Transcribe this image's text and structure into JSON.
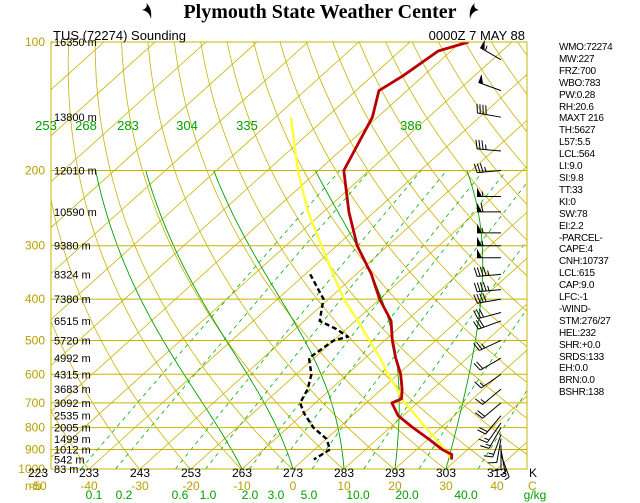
{
  "header": {
    "title": "Plymouth State Weather Center",
    "station": "TUS (72274) Sounding",
    "time": "0000Z  7 MAY 88"
  },
  "chart_data": {
    "type": "line",
    "chart_kind": "skew-T log-P sounding diagram",
    "pressure_axis": {
      "scale": "log",
      "range": [
        1000,
        100
      ],
      "ticks": [
        "100",
        "200",
        "300",
        "400",
        "500",
        "600",
        "700",
        "800",
        "900",
        "1000"
      ]
    },
    "height_labels": [
      {
        "p": 100,
        "label": "16350 m"
      },
      {
        "p": 150,
        "label": "13800 m"
      },
      {
        "p": 200,
        "label": "12010 m"
      },
      {
        "p": 250,
        "label": "10590 m"
      },
      {
        "p": 300,
        "label": "9380 m"
      },
      {
        "p": 350,
        "label": "8324 m"
      },
      {
        "p": 400,
        "label": "7380 m"
      },
      {
        "p": 450,
        "label": "6515 m"
      },
      {
        "p": 500,
        "label": "5720 m"
      },
      {
        "p": 550,
        "label": "4992 m"
      },
      {
        "p": 600,
        "label": "4315 m"
      },
      {
        "p": 650,
        "label": "3683 m"
      },
      {
        "p": 700,
        "label": "3092 m"
      },
      {
        "p": 750,
        "label": "2535 m"
      },
      {
        "p": 800,
        "label": "2005 m"
      },
      {
        "p": 850,
        "label": "1499 m"
      },
      {
        "p": 900,
        "label": "1012 m"
      },
      {
        "p": 950,
        "label": "542 m"
      },
      {
        "p": 1000,
        "label": "83 m"
      }
    ],
    "x_axis_celsius": [
      {
        "t": -50,
        "label": "-50"
      },
      {
        "t": -40,
        "label": "-40"
      },
      {
        "t": -30,
        "label": "-30"
      },
      {
        "t": -20,
        "label": "-20"
      },
      {
        "t": -10,
        "label": "-10"
      },
      {
        "t": 0,
        "label": "0"
      },
      {
        "t": 10,
        "label": "10"
      },
      {
        "t": 20,
        "label": "20"
      },
      {
        "t": 30,
        "label": "30"
      },
      {
        "t": 40,
        "label": "40"
      }
    ],
    "x_axis_kelvin": [
      {
        "t": -50,
        "label": "223"
      },
      {
        "t": -40,
        "label": "233"
      },
      {
        "t": -30,
        "label": "243"
      },
      {
        "t": -20,
        "label": "253"
      },
      {
        "t": -10,
        "label": "263"
      },
      {
        "t": 0,
        "label": "273"
      },
      {
        "t": 10,
        "label": "283"
      },
      {
        "t": 20,
        "label": "293"
      },
      {
        "t": 30,
        "label": "303"
      },
      {
        "t": 40,
        "label": "313"
      }
    ],
    "x_units": {
      "millibar": "mb",
      "kelvin": "K",
      "celsius": "C"
    },
    "mixing_ratio": {
      "units": "g/kg",
      "values": [
        0.1,
        0.2,
        0.6,
        1.0,
        2.0,
        3.0,
        5.0,
        10.0,
        20.0,
        40.0
      ],
      "labels": [
        "0.1",
        "0.2",
        "0.6",
        "1.0",
        "2.0",
        "3.0",
        "5.0",
        "10.0",
        "20.0",
        "40.0"
      ]
    },
    "dry_adiabat_labels": [
      "253",
      "268",
      "283",
      "304",
      "335",
      "386"
    ],
    "series": [
      {
        "role": "temperature",
        "color": "#b80000",
        "points": [
          [
            100,
            -58.5
          ],
          [
            105,
            -62.5
          ],
          [
            120,
            -64
          ],
          [
            130,
            -65.5
          ],
          [
            150,
            -61
          ],
          [
            200,
            -55
          ],
          [
            250,
            -45
          ],
          [
            300,
            -36
          ],
          [
            350,
            -27
          ],
          [
            400,
            -20
          ],
          [
            450,
            -13
          ],
          [
            500,
            -8.5
          ],
          [
            550,
            -4
          ],
          [
            600,
            0.5
          ],
          [
            650,
            4
          ],
          [
            685,
            6
          ],
          [
            700,
            5
          ],
          [
            750,
            9
          ],
          [
            800,
            14.5
          ],
          [
            850,
            20
          ],
          [
            900,
            25
          ],
          [
            925,
            28
          ],
          [
            950,
            29
          ]
        ]
      },
      {
        "role": "dewpoint",
        "color": "#000000",
        "points": [
          [
            350,
            -39
          ],
          [
            400,
            -31
          ],
          [
            450,
            -27
          ],
          [
            470,
            -22
          ],
          [
            490,
            -18
          ],
          [
            500,
            -20
          ],
          [
            550,
            -21
          ],
          [
            600,
            -17
          ],
          [
            650,
            -14.5
          ],
          [
            700,
            -13
          ],
          [
            740,
            -10
          ],
          [
            800,
            -5
          ],
          [
            850,
            0
          ],
          [
            900,
            3
          ],
          [
            950,
            2
          ]
        ]
      },
      {
        "role": "parcel",
        "color": "#ffff33",
        "points": [
          [
            950,
            29
          ],
          [
            900,
            25.5
          ],
          [
            850,
            21.5
          ],
          [
            800,
            17
          ],
          [
            750,
            12.5
          ],
          [
            700,
            7.5
          ],
          [
            650,
            3
          ],
          [
            600,
            -2
          ],
          [
            550,
            -7
          ],
          [
            500,
            -13
          ],
          [
            450,
            -19.5
          ],
          [
            400,
            -27
          ],
          [
            350,
            -34.5
          ],
          [
            300,
            -43
          ],
          [
            250,
            -53
          ],
          [
            200,
            -64
          ],
          [
            150,
            -77
          ]
        ]
      }
    ],
    "wind_barbs": [
      {
        "p": 110,
        "dir": 300,
        "kt": 55
      },
      {
        "p": 130,
        "dir": 290,
        "kt": 50
      },
      {
        "p": 150,
        "dir": 280,
        "kt": 40
      },
      {
        "p": 180,
        "dir": 275,
        "kt": 35
      },
      {
        "p": 200,
        "dir": 265,
        "kt": 35
      },
      {
        "p": 230,
        "dir": 270,
        "kt": 55
      },
      {
        "p": 250,
        "dir": 270,
        "kt": 60
      },
      {
        "p": 280,
        "dir": 270,
        "kt": 55
      },
      {
        "p": 300,
        "dir": 270,
        "kt": 55
      },
      {
        "p": 320,
        "dir": 270,
        "kt": 50
      },
      {
        "p": 350,
        "dir": 265,
        "kt": 45
      },
      {
        "p": 380,
        "dir": 265,
        "kt": 45
      },
      {
        "p": 400,
        "dir": 260,
        "kt": 40
      },
      {
        "p": 430,
        "dir": 255,
        "kt": 30
      },
      {
        "p": 450,
        "dir": 250,
        "kt": 30
      },
      {
        "p": 500,
        "dir": 245,
        "kt": 25
      },
      {
        "p": 550,
        "dir": 240,
        "kt": 20
      },
      {
        "p": 600,
        "dir": 235,
        "kt": 15
      },
      {
        "p": 650,
        "dir": 230,
        "kt": 15
      },
      {
        "p": 700,
        "dir": 230,
        "kt": 20
      },
      {
        "p": 750,
        "dir": 220,
        "kt": 20
      },
      {
        "p": 780,
        "dir": 215,
        "kt": 15
      },
      {
        "p": 800,
        "dir": 210,
        "kt": 15
      },
      {
        "p": 830,
        "dir": 200,
        "kt": 15
      },
      {
        "p": 850,
        "dir": 190,
        "kt": 10
      },
      {
        "p": 880,
        "dir": 180,
        "kt": 10
      },
      {
        "p": 900,
        "dir": 170,
        "kt": 5
      },
      {
        "p": 925,
        "dir": 160,
        "kt": 5
      }
    ],
    "colors": {
      "isobar": "#c8b400",
      "isotherm": "#c8b400",
      "dry_adiabat": "#c8b400",
      "moist_adiabat": "#00a000",
      "mixing_ratio": "#00b000",
      "label_yellow": "#b8a000",
      "label_green": "#00a000"
    },
    "legend": "none",
    "grid": true
  },
  "stats": [
    "WMO:72274",
    "MW:227",
    "FRZ:700",
    "WBO:783",
    "PW:0.28",
    "RH:20.6",
    "MAXT 216",
    "TH:5627",
    "L57:5.5",
    "LCL:564",
    "LI:9.0",
    "SI:9.8",
    "TT:33",
    "KI:0",
    "SW:78",
    "EI:2.2",
    "-PARCEL-",
    "CAPE:4",
    "CNH:10737",
    "LCL:615",
    "CAP:9.0",
    "LFC:-1",
    "-WIND-",
    "STM:276/27",
    "HEL:232",
    "SHR:+0.0",
    "SRDS:133",
    "EH:0.0",
    "BRN:0.0",
    "BSHR:138"
  ]
}
